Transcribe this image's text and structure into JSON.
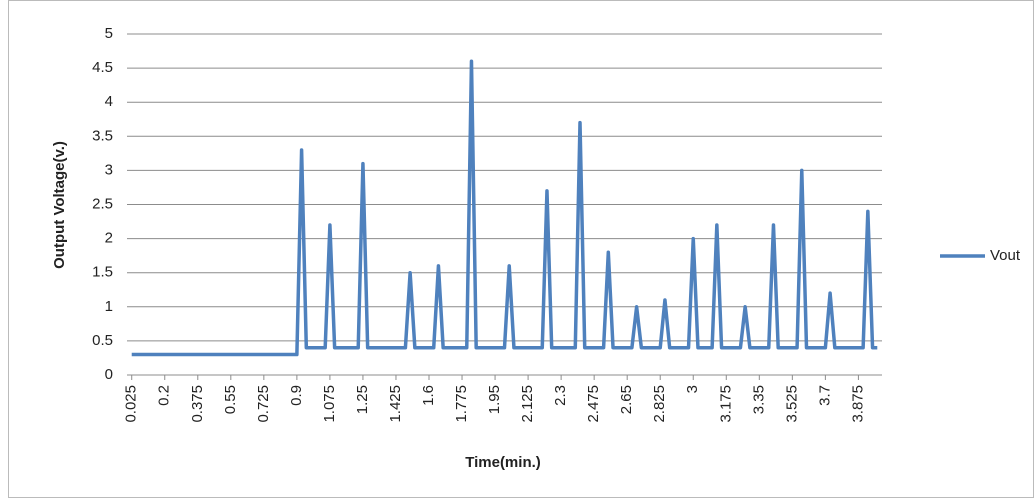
{
  "chart_data": {
    "type": "line",
    "x_label": "Time(min.)",
    "y_label": "Output Voltage(v.)",
    "x": [
      0.025,
      0.875,
      0.9,
      0.925,
      0.95,
      1.05,
      1.075,
      1.1,
      1.225,
      1.25,
      1.275,
      1.475,
      1.5,
      1.525,
      1.625,
      1.65,
      1.675,
      1.8,
      1.825,
      1.85,
      2.0,
      2.025,
      2.05,
      2.2,
      2.225,
      2.25,
      2.375,
      2.4,
      2.425,
      2.525,
      2.55,
      2.575,
      2.675,
      2.7,
      2.725,
      2.825,
      2.85,
      2.875,
      2.975,
      3.0,
      3.025,
      3.1,
      3.125,
      3.15,
      3.25,
      3.275,
      3.3,
      3.4,
      3.425,
      3.45,
      3.55,
      3.575,
      3.6,
      3.7,
      3.725,
      3.75,
      3.9,
      3.925,
      3.95,
      3.975
    ],
    "series": [
      {
        "name": "Vout",
        "color": "#4f81bd",
        "values": [
          0.3,
          0.3,
          0.3,
          3.3,
          0.4,
          0.4,
          2.2,
          0.4,
          0.4,
          3.1,
          0.4,
          0.4,
          1.5,
          0.4,
          0.4,
          1.6,
          0.4,
          0.4,
          4.6,
          0.4,
          0.4,
          1.6,
          0.4,
          0.4,
          2.7,
          0.4,
          0.4,
          3.7,
          0.4,
          0.4,
          1.8,
          0.4,
          0.4,
          1.0,
          0.4,
          0.4,
          1.1,
          0.4,
          0.4,
          2.0,
          0.4,
          0.4,
          2.2,
          0.4,
          0.4,
          1.0,
          0.4,
          0.4,
          2.2,
          0.4,
          0.4,
          3.0,
          0.4,
          0.4,
          1.2,
          0.4,
          0.4,
          2.4,
          0.4,
          0.4
        ]
      }
    ],
    "xlim": [
      0,
      4.0
    ],
    "xticks": [
      0.025,
      0.2,
      0.375,
      0.55,
      0.725,
      0.9,
      1.075,
      1.25,
      1.425,
      1.6,
      1.775,
      1.95,
      2.125,
      2.3,
      2.475,
      2.65,
      2.825,
      3,
      3.175,
      3.35,
      3.525,
      3.7,
      3.875
    ],
    "ylim": [
      0,
      5
    ],
    "yticks": [
      0,
      0.5,
      1,
      1.5,
      2,
      2.5,
      3,
      3.5,
      4,
      4.5,
      5
    ],
    "grid": true,
    "legend": "right"
  }
}
